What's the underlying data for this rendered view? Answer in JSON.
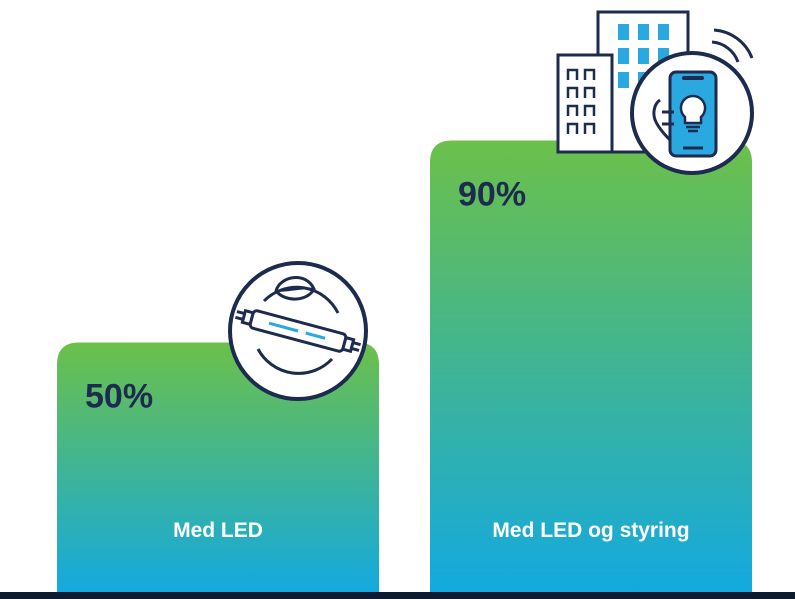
{
  "chart_data": {
    "type": "bar",
    "categories": [
      "Med LED",
      "Med LED og styring"
    ],
    "values": [
      50,
      90
    ],
    "value_labels": [
      "50%",
      "90%"
    ],
    "ylim": [
      0,
      100
    ],
    "grid": false,
    "legend": "none"
  },
  "colors": {
    "bar_top": "#6cc04a",
    "bar_bottom": "#13a9e0",
    "baseline": "#0e1a30",
    "value_text": "#1d2b4f",
    "icon_stroke": "#1d2b4f",
    "icon_accent": "#2aa8e0"
  },
  "icons": [
    "led-tube-cycle-icon",
    "building-phone-lightbulb-icon"
  ]
}
